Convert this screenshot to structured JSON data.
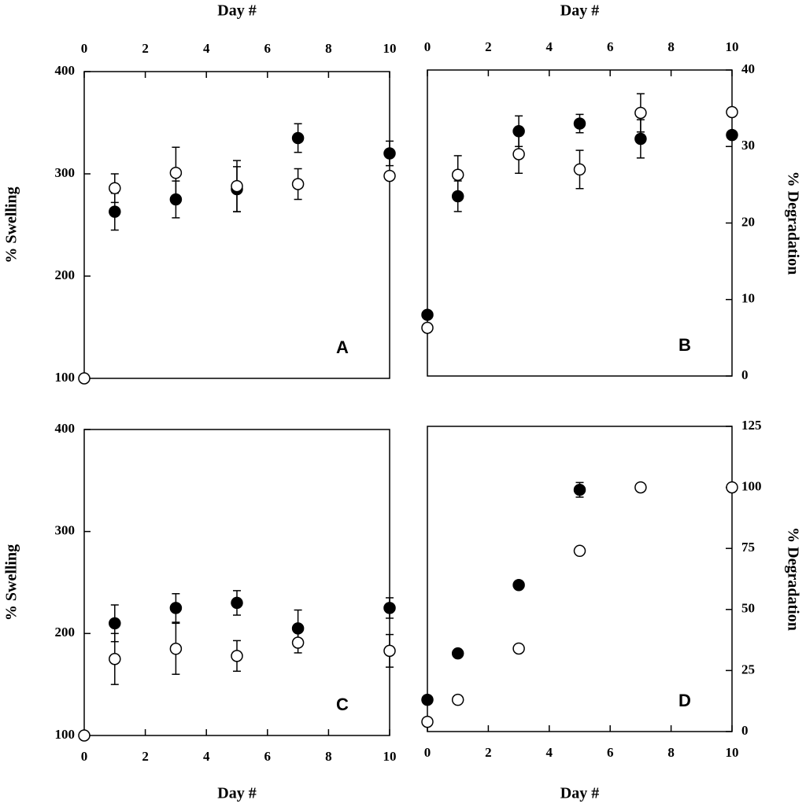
{
  "chart_data": [
    {
      "type": "scatter",
      "x_label": "Day #",
      "y_label": "% Swelling",
      "panel_label": "A",
      "xaxis_position": "top",
      "yaxis_position": "left",
      "xlim": [
        0,
        10
      ],
      "xticks": [
        0,
        2,
        4,
        6,
        8,
        10
      ],
      "ylim": [
        100,
        400
      ],
      "yticks": [
        100,
        200,
        300,
        400
      ],
      "series": [
        {
          "color": "#000000",
          "x": [
            1,
            3,
            5,
            7,
            10
          ],
          "values": [
            263,
            275,
            285,
            335,
            320
          ],
          "errors": [
            18,
            18,
            22,
            14,
            12
          ]
        },
        {
          "color": "#ffffff",
          "x": [
            0,
            1,
            3,
            5,
            7,
            10
          ],
          "values": [
            100,
            286,
            301,
            288,
            290,
            298
          ],
          "errors": [
            null,
            14,
            25,
            25,
            15,
            null
          ]
        }
      ]
    },
    {
      "type": "scatter",
      "x_label": "Day #",
      "y_label": "% Degradation",
      "panel_label": "B",
      "xaxis_position": "top",
      "yaxis_position": "right",
      "xlim": [
        0,
        10
      ],
      "xticks": [
        0,
        2,
        4,
        6,
        8,
        10
      ],
      "ylim": [
        0,
        40
      ],
      "yticks": [
        0,
        10,
        20,
        30,
        40
      ],
      "series": [
        {
          "color": "#000000",
          "x": [
            0,
            1,
            3,
            5,
            7,
            10
          ],
          "values": [
            8,
            23.5,
            32,
            33,
            31,
            31.5
          ],
          "errors": [
            null,
            2,
            2,
            1.2,
            2.5,
            null
          ]
        },
        {
          "color": "#ffffff",
          "x": [
            0,
            1,
            3,
            5,
            7,
            10
          ],
          "values": [
            6.3,
            26.3,
            29,
            27,
            34.4,
            34.5
          ],
          "errors": [
            null,
            2.5,
            2.5,
            2.5,
            2.5,
            null
          ]
        }
      ]
    },
    {
      "type": "scatter",
      "x_label": "Day #",
      "y_label": "% Swelling",
      "panel_label": "C",
      "xaxis_position": "bottom",
      "yaxis_position": "left",
      "xlim": [
        0,
        10
      ],
      "xticks": [
        0,
        2,
        4,
        6,
        8,
        10
      ],
      "ylim": [
        100,
        400
      ],
      "yticks": [
        100,
        200,
        300,
        400
      ],
      "series": [
        {
          "color": "#000000",
          "x": [
            1,
            3,
            5,
            7,
            10
          ],
          "values": [
            210,
            225,
            230,
            205,
            225
          ],
          "errors": [
            18,
            14,
            12,
            18,
            10
          ]
        },
        {
          "color": "#ffffff",
          "x": [
            0,
            1,
            3,
            5,
            7,
            10
          ],
          "values": [
            100,
            175,
            185,
            178,
            191,
            183
          ],
          "errors": [
            null,
            25,
            25,
            15,
            10,
            16
          ]
        }
      ]
    },
    {
      "type": "scatter",
      "x_label": "Day #",
      "y_label": "% Degradation",
      "panel_label": "D",
      "xaxis_position": "bottom",
      "yaxis_position": "right",
      "xlim": [
        0,
        10
      ],
      "xticks": [
        0,
        2,
        4,
        6,
        8,
        10
      ],
      "ylim": [
        0,
        125
      ],
      "yticks": [
        0,
        25,
        50,
        75,
        100,
        125
      ],
      "series": [
        {
          "color": "#000000",
          "x": [
            0,
            1,
            3,
            5
          ],
          "values": [
            13,
            32,
            60,
            99
          ],
          "errors": [
            null,
            null,
            null,
            3
          ]
        },
        {
          "color": "#ffffff",
          "x": [
            0,
            1,
            3,
            5,
            7,
            10
          ],
          "values": [
            4,
            13,
            34,
            74,
            100,
            100
          ],
          "errors": [
            null,
            null,
            null,
            null,
            null,
            null
          ]
        }
      ]
    }
  ]
}
